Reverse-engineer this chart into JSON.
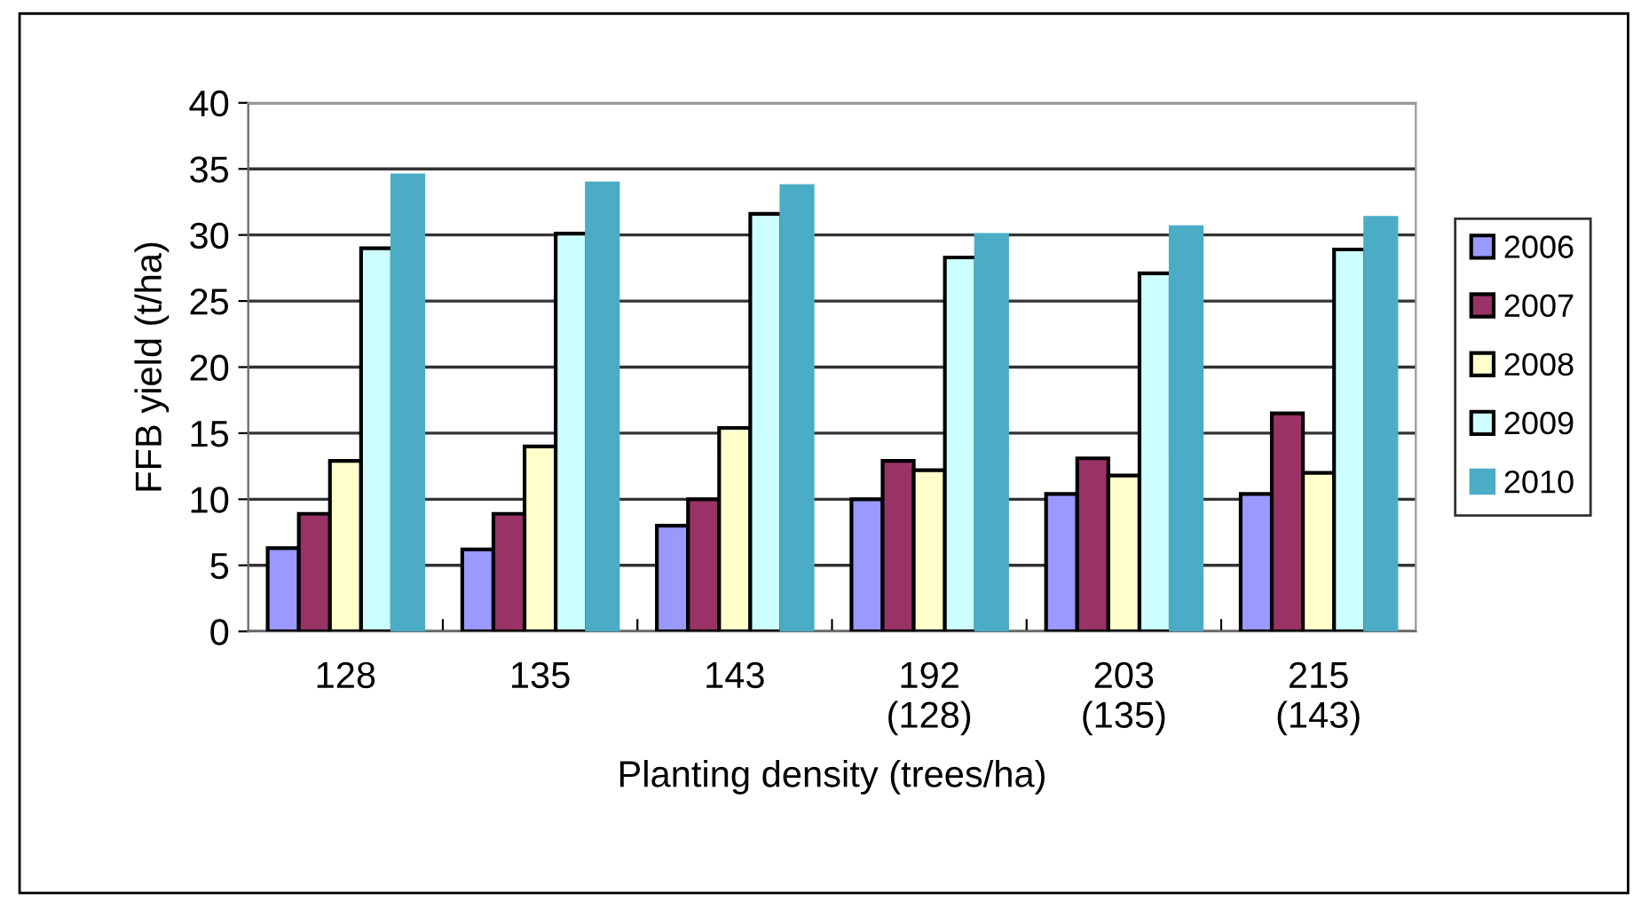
{
  "chart_data": {
    "type": "bar",
    "xlabel": "Planting density (trees/ha)",
    "ylabel": "FFB yield (t/ha)",
    "categories": [
      "128",
      "135",
      "143",
      "192\n(128)",
      "203\n(135)",
      "215\n(143)"
    ],
    "series": [
      {
        "name": "2006",
        "color": "#9999ff",
        "values": [
          6.3,
          6.2,
          8.0,
          10.0,
          10.4,
          10.4
        ]
      },
      {
        "name": "2007",
        "color": "#993366",
        "values": [
          8.9,
          8.9,
          10.0,
          12.9,
          13.1,
          16.5
        ]
      },
      {
        "name": "2008",
        "color": "#ffffcc",
        "values": [
          12.9,
          14.0,
          15.4,
          12.2,
          11.8,
          12.0
        ]
      },
      {
        "name": "2009",
        "color": "#ccffff",
        "values": [
          29.0,
          30.1,
          31.6,
          28.3,
          27.1,
          28.9
        ]
      },
      {
        "name": "2010",
        "color": "#4bacc6",
        "values": [
          34.5,
          33.9,
          33.7,
          30.0,
          30.6,
          31.3
        ]
      }
    ],
    "ylim": [
      0,
      40
    ],
    "yticks": [
      0,
      5,
      10,
      15,
      20,
      25,
      30,
      35,
      40
    ],
    "grid": "y",
    "legend": "right"
  }
}
